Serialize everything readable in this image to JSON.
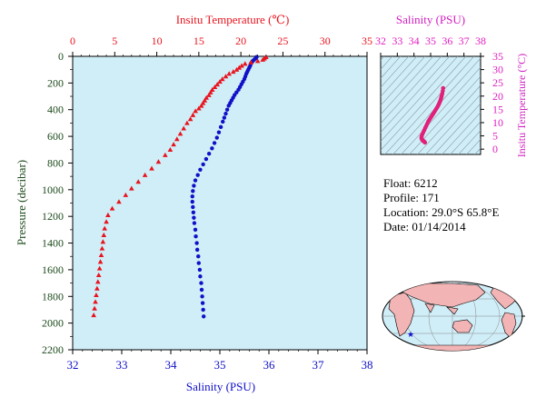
{
  "chart_data": [
    {
      "type": "scatter",
      "top_axis_label": "Insitu Temperature (℃)",
      "bottom_axis_label": "Salinity (PSU)",
      "ylabel": "Pressure (decibar)",
      "temperature_axis": {
        "range": [
          0,
          35
        ],
        "ticks": [
          "0",
          "5",
          "10",
          "15",
          "20",
          "25",
          "30",
          "35"
        ],
        "color": "#e8141e"
      },
      "salinity_axis": {
        "range": [
          32,
          38
        ],
        "ticks": [
          "32",
          "33",
          "34",
          "35",
          "36",
          "37",
          "38"
        ],
        "color": "#1010c8"
      },
      "pressure_axis": {
        "range": [
          0,
          2200
        ],
        "reversed": true,
        "ticks": [
          "0",
          "200",
          "400",
          "600",
          "800",
          "1000",
          "1200",
          "1400",
          "1600",
          "1800",
          "2000",
          "2200"
        ],
        "color": "#1c4a1c"
      },
      "background": "#d0eef8",
      "series": [
        {
          "marker": "triangle",
          "color": "#e8141e",
          "points": [
            {
              "t": 23.0,
              "p": 5
            },
            {
              "t": 22.8,
              "p": 15
            },
            {
              "t": 22.6,
              "p": 25
            },
            {
              "t": 22.0,
              "p": 35
            },
            {
              "t": 21.2,
              "p": 45
            },
            {
              "t": 20.5,
              "p": 55
            },
            {
              "t": 20.1,
              "p": 70
            },
            {
              "t": 19.8,
              "p": 85
            },
            {
              "t": 19.5,
              "p": 100
            },
            {
              "t": 19.1,
              "p": 115
            },
            {
              "t": 18.6,
              "p": 130
            },
            {
              "t": 18.2,
              "p": 150
            },
            {
              "t": 17.8,
              "p": 170
            },
            {
              "t": 17.5,
              "p": 190
            },
            {
              "t": 17.2,
              "p": 210
            },
            {
              "t": 16.9,
              "p": 230
            },
            {
              "t": 16.6,
              "p": 250
            },
            {
              "t": 16.4,
              "p": 270
            },
            {
              "t": 16.2,
              "p": 290
            },
            {
              "t": 15.9,
              "p": 310
            },
            {
              "t": 15.7,
              "p": 330
            },
            {
              "t": 15.5,
              "p": 350
            },
            {
              "t": 15.3,
              "p": 370
            },
            {
              "t": 15.0,
              "p": 390
            },
            {
              "t": 14.6,
              "p": 410
            },
            {
              "t": 14.3,
              "p": 440
            },
            {
              "t": 14.0,
              "p": 470
            },
            {
              "t": 13.6,
              "p": 500
            },
            {
              "t": 13.2,
              "p": 540
            },
            {
              "t": 12.8,
              "p": 580
            },
            {
              "t": 12.4,
              "p": 620
            },
            {
              "t": 12.0,
              "p": 660
            },
            {
              "t": 11.6,
              "p": 700
            },
            {
              "t": 11.0,
              "p": 740
            },
            {
              "t": 10.2,
              "p": 790
            },
            {
              "t": 9.4,
              "p": 840
            },
            {
              "t": 8.6,
              "p": 890
            },
            {
              "t": 7.8,
              "p": 940
            },
            {
              "t": 7.0,
              "p": 990
            },
            {
              "t": 6.3,
              "p": 1040
            },
            {
              "t": 5.5,
              "p": 1090
            },
            {
              "t": 4.7,
              "p": 1140
            },
            {
              "t": 4.2,
              "p": 1190
            },
            {
              "t": 4.0,
              "p": 1240
            },
            {
              "t": 3.8,
              "p": 1290
            },
            {
              "t": 3.7,
              "p": 1340
            },
            {
              "t": 3.6,
              "p": 1390
            },
            {
              "t": 3.5,
              "p": 1440
            },
            {
              "t": 3.4,
              "p": 1490
            },
            {
              "t": 3.3,
              "p": 1540
            },
            {
              "t": 3.2,
              "p": 1590
            },
            {
              "t": 3.1,
              "p": 1640
            },
            {
              "t": 3.0,
              "p": 1690
            },
            {
              "t": 2.9,
              "p": 1740
            },
            {
              "t": 2.8,
              "p": 1790
            },
            {
              "t": 2.7,
              "p": 1840
            },
            {
              "t": 2.6,
              "p": 1890
            },
            {
              "t": 2.5,
              "p": 1940
            }
          ]
        },
        {
          "marker": "circle",
          "color": "#1010c8",
          "points": [
            {
              "s": 35.75,
              "p": 5
            },
            {
              "s": 35.73,
              "p": 15
            },
            {
              "s": 35.7,
              "p": 25
            },
            {
              "s": 35.67,
              "p": 35
            },
            {
              "s": 35.65,
              "p": 45
            },
            {
              "s": 35.63,
              "p": 55
            },
            {
              "s": 35.62,
              "p": 70
            },
            {
              "s": 35.6,
              "p": 85
            },
            {
              "s": 35.58,
              "p": 100
            },
            {
              "s": 35.56,
              "p": 115
            },
            {
              "s": 35.54,
              "p": 130
            },
            {
              "s": 35.52,
              "p": 150
            },
            {
              "s": 35.5,
              "p": 170
            },
            {
              "s": 35.47,
              "p": 190
            },
            {
              "s": 35.44,
              "p": 210
            },
            {
              "s": 35.41,
              "p": 230
            },
            {
              "s": 35.38,
              "p": 250
            },
            {
              "s": 35.34,
              "p": 270
            },
            {
              "s": 35.3,
              "p": 290
            },
            {
              "s": 35.27,
              "p": 310
            },
            {
              "s": 35.24,
              "p": 330
            },
            {
              "s": 35.21,
              "p": 350
            },
            {
              "s": 35.18,
              "p": 370
            },
            {
              "s": 35.15,
              "p": 400
            },
            {
              "s": 35.12,
              "p": 430
            },
            {
              "s": 35.09,
              "p": 460
            },
            {
              "s": 35.06,
              "p": 490
            },
            {
              "s": 35.02,
              "p": 530
            },
            {
              "s": 34.98,
              "p": 570
            },
            {
              "s": 34.94,
              "p": 610
            },
            {
              "s": 34.89,
              "p": 650
            },
            {
              "s": 34.84,
              "p": 690
            },
            {
              "s": 34.78,
              "p": 730
            },
            {
              "s": 34.72,
              "p": 770
            },
            {
              "s": 34.66,
              "p": 810
            },
            {
              "s": 34.6,
              "p": 850
            },
            {
              "s": 34.55,
              "p": 890
            },
            {
              "s": 34.5,
              "p": 930
            },
            {
              "s": 34.47,
              "p": 970
            },
            {
              "s": 34.45,
              "p": 1010
            },
            {
              "s": 34.44,
              "p": 1050
            },
            {
              "s": 34.44,
              "p": 1090
            },
            {
              "s": 34.45,
              "p": 1130
            },
            {
              "s": 34.46,
              "p": 1170
            },
            {
              "s": 34.47,
              "p": 1210
            },
            {
              "s": 34.48,
              "p": 1250
            },
            {
              "s": 34.5,
              "p": 1300
            },
            {
              "s": 34.51,
              "p": 1350
            },
            {
              "s": 34.53,
              "p": 1400
            },
            {
              "s": 34.54,
              "p": 1450
            },
            {
              "s": 34.56,
              "p": 1500
            },
            {
              "s": 34.57,
              "p": 1550
            },
            {
              "s": 34.59,
              "p": 1600
            },
            {
              "s": 34.6,
              "p": 1650
            },
            {
              "s": 34.62,
              "p": 1700
            },
            {
              "s": 34.63,
              "p": 1750
            },
            {
              "s": 34.64,
              "p": 1800
            },
            {
              "s": 34.65,
              "p": 1850
            },
            {
              "s": 34.66,
              "p": 1900
            },
            {
              "s": 34.67,
              "p": 1950
            }
          ]
        }
      ]
    },
    {
      "type": "scatter",
      "top_axis_label": "Salinity (PSU)",
      "right_axis_label": "Insitu Temperature (°C)",
      "salinity_axis": {
        "range": [
          32,
          38
        ],
        "ticks": [
          "32",
          "33",
          "34",
          "35",
          "36",
          "37",
          "38"
        ]
      },
      "temperature_axis": {
        "range": [
          -2,
          35
        ],
        "ticks": [
          "0",
          "5",
          "10",
          "15",
          "20",
          "25",
          "30",
          "35"
        ]
      },
      "color": "#e020c0",
      "background": "#d0eef8",
      "series": [
        {
          "marker": "circle",
          "color": "#e0207a",
          "points": [
            {
              "s": 35.75,
              "t": 23.0
            },
            {
              "s": 35.73,
              "t": 22.0
            },
            {
              "s": 35.7,
              "t": 21.0
            },
            {
              "s": 35.67,
              "t": 20.2
            },
            {
              "s": 35.64,
              "t": 19.5
            },
            {
              "s": 35.61,
              "t": 18.8
            },
            {
              "s": 35.58,
              "t": 18.2
            },
            {
              "s": 35.54,
              "t": 17.6
            },
            {
              "s": 35.5,
              "t": 17.0
            },
            {
              "s": 35.45,
              "t": 16.4
            },
            {
              "s": 35.4,
              "t": 15.8
            },
            {
              "s": 35.34,
              "t": 15.2
            },
            {
              "s": 35.28,
              "t": 14.6
            },
            {
              "s": 35.22,
              "t": 14.0
            },
            {
              "s": 35.16,
              "t": 13.4
            },
            {
              "s": 35.1,
              "t": 12.8
            },
            {
              "s": 35.04,
              "t": 12.2
            },
            {
              "s": 34.98,
              "t": 11.6
            },
            {
              "s": 34.92,
              "t": 11.0
            },
            {
              "s": 34.86,
              "t": 10.4
            },
            {
              "s": 34.8,
              "t": 9.6
            },
            {
              "s": 34.74,
              "t": 8.8
            },
            {
              "s": 34.68,
              "t": 8.0
            },
            {
              "s": 34.62,
              "t": 7.2
            },
            {
              "s": 34.56,
              "t": 6.4
            },
            {
              "s": 34.5,
              "t": 5.6
            },
            {
              "s": 34.46,
              "t": 4.8
            },
            {
              "s": 34.45,
              "t": 4.2
            },
            {
              "s": 34.47,
              "t": 3.8
            },
            {
              "s": 34.5,
              "t": 3.5
            },
            {
              "s": 34.53,
              "t": 3.3
            },
            {
              "s": 34.56,
              "t": 3.1
            },
            {
              "s": 34.6,
              "t": 2.9
            },
            {
              "s": 34.63,
              "t": 2.7
            },
            {
              "s": 34.66,
              "t": 2.5
            }
          ]
        }
      ]
    }
  ],
  "info": {
    "float": "Float:  6212",
    "profile": "Profile:  171",
    "location": "Location:  29.0°S  65.8°E",
    "date": "Date:  01/14/2014"
  },
  "map": {
    "marker_color": "#1010c8",
    "land_color": "#f2b4b4",
    "ocean_color": "#d0eef8"
  }
}
